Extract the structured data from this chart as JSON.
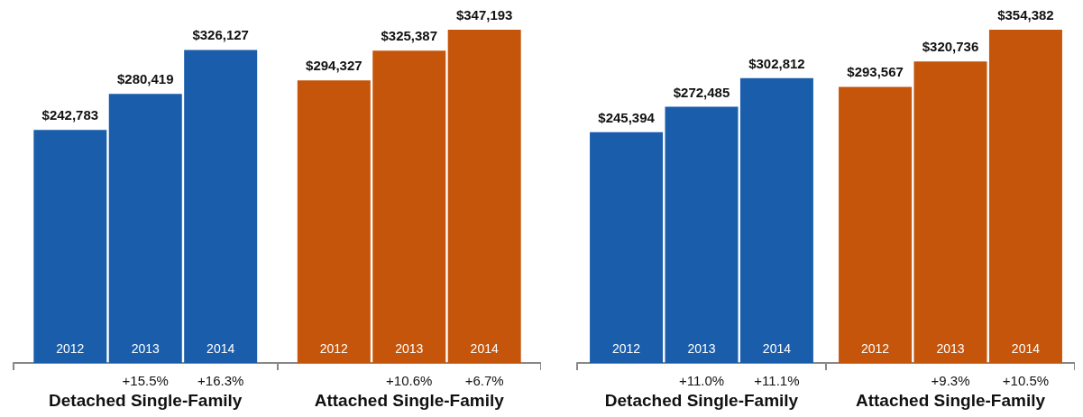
{
  "chart_data": [
    {
      "type": "bar",
      "categories": [
        "Detached Single-Family",
        "Attached Single-Family"
      ],
      "series": [
        {
          "name": "2012",
          "colors": [
            "#1a5eab",
            "#c4550a"
          ],
          "values": [
            242783,
            294327
          ],
          "value_labels": [
            "$242,783",
            "$294,327"
          ]
        },
        {
          "name": "2013",
          "colors": [
            "#1a5eab",
            "#c4550a"
          ],
          "values": [
            280419,
            325387
          ],
          "value_labels": [
            "$280,419",
            "$325,387"
          ]
        },
        {
          "name": "2014",
          "colors": [
            "#1a5eab",
            "#c4550a"
          ],
          "values": [
            326127,
            347193
          ],
          "value_labels": [
            "$326,127",
            "$347,193"
          ]
        }
      ],
      "annotations": [
        "+15.5%",
        "+16.3%",
        "+10.6%",
        "+6.7%"
      ]
    },
    {
      "type": "bar",
      "categories": [
        "Detached Single-Family",
        "Attached Single-Family"
      ],
      "series": [
        {
          "name": "2012",
          "colors": [
            "#1a5eab",
            "#c4550a"
          ],
          "values": [
            245394,
            293567
          ],
          "value_labels": [
            "$245,394",
            "$293,567"
          ]
        },
        {
          "name": "2013",
          "colors": [
            "#1a5eab",
            "#c4550a"
          ],
          "values": [
            272485,
            320736
          ],
          "value_labels": [
            "$272,485",
            "$320,736"
          ]
        },
        {
          "name": "2014",
          "colors": [
            "#1a5eab",
            "#c4550a"
          ],
          "values": [
            302812,
            354382
          ],
          "value_labels": [
            "$302,812",
            "$354,382"
          ]
        }
      ],
      "annotations": [
        "+11.0%",
        "+11.1%",
        "+9.3%",
        "+10.5%"
      ]
    }
  ]
}
